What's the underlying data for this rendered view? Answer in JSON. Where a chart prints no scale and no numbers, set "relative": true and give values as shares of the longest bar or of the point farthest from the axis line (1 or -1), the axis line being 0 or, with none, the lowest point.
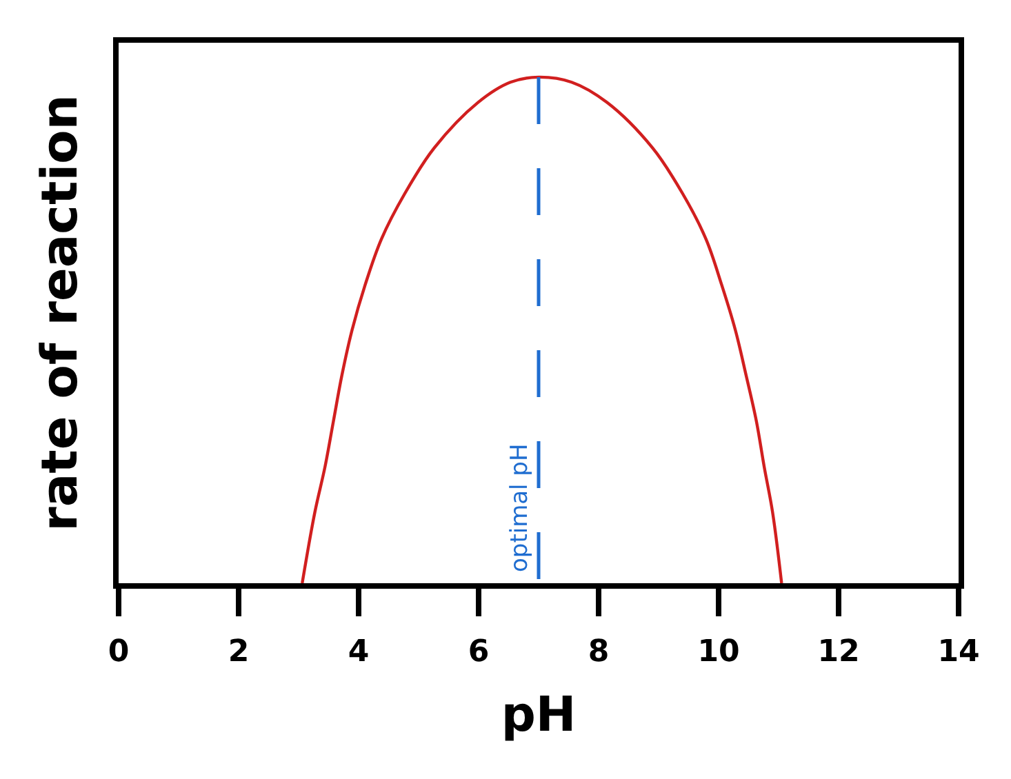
{
  "chart_data": {
    "type": "line",
    "xlabel": "pH",
    "ylabel": "rate of reaction",
    "relative": true,
    "x": [
      3.06,
      3.27,
      3.44,
      3.58,
      3.72,
      3.89,
      4.11,
      4.38,
      4.77,
      5.26,
      5.99,
      6.53,
      7.0,
      7.55,
      8.14,
      8.9,
      9.4,
      9.79,
      10.05,
      10.28,
      10.46,
      10.63,
      10.76,
      10.9,
      11.05
    ],
    "series": [
      {
        "color": "#d11f1f",
        "values": [
          0,
          0.14,
          0.23,
          0.32,
          0.41,
          0.5,
          0.59,
          0.68,
          0.77,
          0.86,
          0.95,
          0.99,
          1.0,
          0.99,
          0.95,
          0.86,
          0.77,
          0.68,
          0.59,
          0.5,
          0.41,
          0.32,
          0.23,
          0.14,
          0
        ]
      }
    ],
    "xlim": [
      0,
      14
    ],
    "xticks": [
      0,
      2,
      4,
      6,
      8,
      10,
      12,
      14
    ],
    "ref_lines": [
      {
        "axis": "x",
        "value": 7,
        "label": "optimal pH",
        "color": "#1f6dd0",
        "line_style": "dashed"
      }
    ],
    "grid": false,
    "marker": "none",
    "line_style": "solid"
  }
}
